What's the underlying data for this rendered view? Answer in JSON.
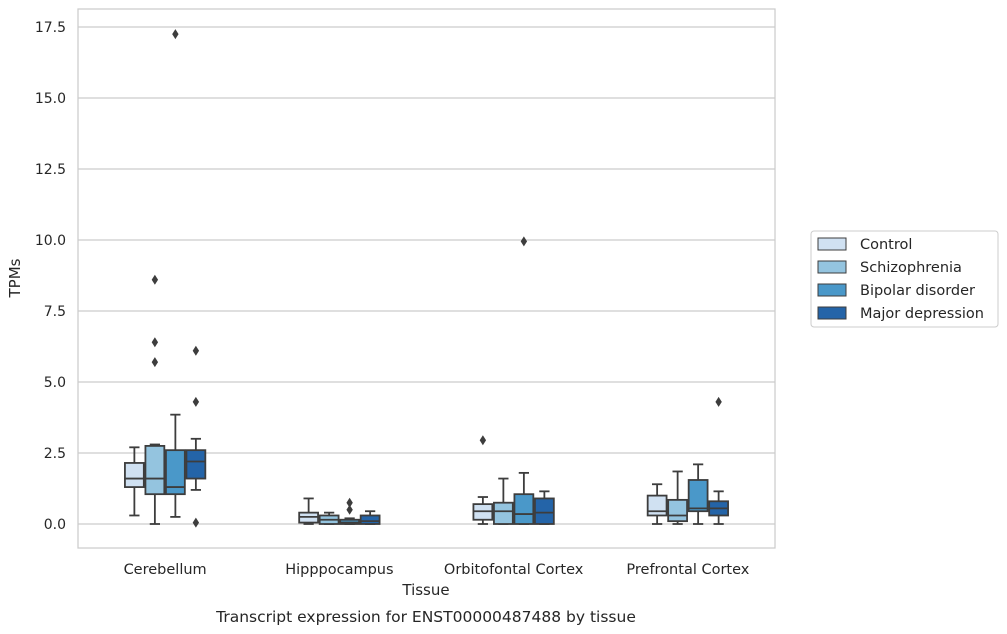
{
  "chart_data": {
    "type": "box",
    "title": "Transcript expression for ENST00000487488 by tissue",
    "xlabel": "Tissue",
    "ylabel": "TPMs",
    "categories": [
      "Cerebellum",
      "Hipppocampus",
      "Orbitofontal Cortex",
      "Prefrontal Cortex"
    ],
    "ylim": [
      -0.8,
      18.2
    ],
    "yticks": [
      "0.0",
      "2.5",
      "5.0",
      "7.5",
      "10.0",
      "12.5",
      "15.0",
      "17.5"
    ],
    "grid": "horizontal",
    "legend_position": "right",
    "series": [
      {
        "name": "Control",
        "color": "#d0e1f2",
        "boxes": [
          {
            "whislo": 0.3,
            "q1": 1.3,
            "med": 1.6,
            "q3": 2.15,
            "whishi": 2.7,
            "fliers": []
          },
          {
            "whislo": 0.0,
            "q1": 0.05,
            "med": 0.25,
            "q3": 0.4,
            "whishi": 0.9,
            "fliers": []
          },
          {
            "whislo": 0.0,
            "q1": 0.15,
            "med": 0.45,
            "q3": 0.7,
            "whishi": 0.95,
            "fliers": [
              2.95
            ]
          },
          {
            "whislo": 0.0,
            "q1": 0.3,
            "med": 0.45,
            "q3": 1.0,
            "whishi": 1.4,
            "fliers": []
          }
        ]
      },
      {
        "name": "Schizophrenia",
        "color": "#94c4df",
        "boxes": [
          {
            "whislo": 0.0,
            "q1": 1.05,
            "med": 1.6,
            "q3": 2.75,
            "whishi": 2.8,
            "fliers": [
              8.6,
              6.4,
              5.7
            ]
          },
          {
            "whislo": 0.0,
            "q1": 0.0,
            "med": 0.15,
            "q3": 0.3,
            "whishi": 0.4,
            "fliers": []
          },
          {
            "whislo": 0.0,
            "q1": 0.0,
            "med": 0.45,
            "q3": 0.75,
            "whishi": 1.6,
            "fliers": []
          },
          {
            "whislo": 0.0,
            "q1": 0.1,
            "med": 0.3,
            "q3": 0.85,
            "whishi": 1.85,
            "fliers": []
          }
        ]
      },
      {
        "name": "Bipolar disorder",
        "color": "#4a98c9",
        "boxes": [
          {
            "whislo": 0.25,
            "q1": 1.05,
            "med": 1.3,
            "q3": 2.6,
            "whishi": 3.85,
            "fliers": [
              17.25
            ]
          },
          {
            "whislo": 0.0,
            "q1": 0.0,
            "med": 0.05,
            "q3": 0.15,
            "whishi": 0.2,
            "fliers": [
              0.75,
              0.5
            ]
          },
          {
            "whislo": 0.0,
            "q1": 0.0,
            "med": 0.35,
            "q3": 1.05,
            "whishi": 1.8,
            "fliers": [
              9.95
            ]
          },
          {
            "whislo": 0.0,
            "q1": 0.45,
            "med": 0.55,
            "q3": 1.55,
            "whishi": 2.1,
            "fliers": []
          }
        ]
      },
      {
        "name": "Major depression",
        "color": "#2464a8",
        "boxes": [
          {
            "whislo": 1.2,
            "q1": 1.6,
            "med": 2.2,
            "q3": 2.6,
            "whishi": 3.0,
            "fliers": [
              6.1,
              4.3,
              0.05
            ]
          },
          {
            "whislo": 0.0,
            "q1": 0.0,
            "med": 0.1,
            "q3": 0.3,
            "whishi": 0.45,
            "fliers": []
          },
          {
            "whislo": 0.0,
            "q1": 0.0,
            "med": 0.4,
            "q3": 0.9,
            "whishi": 1.15,
            "fliers": []
          },
          {
            "whislo": 0.0,
            "q1": 0.3,
            "med": 0.55,
            "q3": 0.8,
            "whishi": 1.15,
            "fliers": [
              4.3
            ]
          }
        ]
      }
    ]
  }
}
